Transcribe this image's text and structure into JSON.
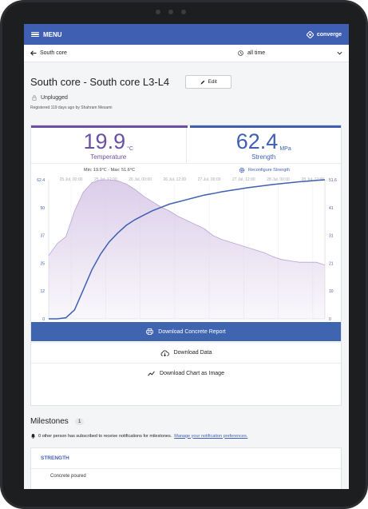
{
  "topbar": {
    "menu_label": "MENU",
    "brand": "converge",
    "menu_icon": "hamburger-icon",
    "brand_icon": "converge-logo-icon"
  },
  "breadcrumb": {
    "back_label": "South core",
    "range_label": "all time",
    "back_icon": "arrow-left-icon",
    "clock_icon": "clock-icon",
    "chevron_icon": "chevron-down-icon"
  },
  "sensor": {
    "title": "South core - South core L3-L4",
    "edit_label": "Edit",
    "status": "Unplugged",
    "registered": "Registered 119 days ago by Shahram Mesami"
  },
  "metrics": {
    "temperature": {
      "value": "19.9",
      "unit": "°C",
      "label": "Temperature"
    },
    "strength": {
      "value": "62.4",
      "unit": "MPa",
      "label": "Strength"
    },
    "minmax": "Min: 19.9°C - Max: 51.6°C",
    "reconfigure_label": "Reconfigure Strength"
  },
  "colors": {
    "brand": "#3f5fb3",
    "temperature": "#6b51a3",
    "temperature_fill": "#d9cbe8",
    "button": "#3f64b0"
  },
  "chart_data": {
    "type": "area",
    "x_ticks": [
      "25 Jul, 00:00",
      "25 Jul, 12:00",
      "26 Jul, 00:00",
      "26 Jul, 12:00",
      "27 Jul, 00:00",
      "27 Jul, 12:00",
      "28 Jul, 00:00",
      "28 Jul, 12:00"
    ],
    "left_axis_ticks": [
      "62.4",
      "50",
      "37",
      "25",
      "12",
      "0"
    ],
    "right_axis_ticks": [
      "51.6",
      "41",
      "31",
      "21",
      "10",
      "0"
    ],
    "left_ylim": [
      0,
      62.4
    ],
    "right_ylim": [
      0,
      51.6
    ],
    "grid": true,
    "series": [
      {
        "type": "area",
        "axis": "right",
        "x": [
          0,
          0.5,
          1,
          1.5,
          2,
          2.5,
          3,
          3.5,
          4,
          4.5,
          5,
          5.5,
          6,
          6.5,
          7,
          7.5,
          8,
          8.5,
          9,
          9.5,
          10,
          10.5,
          11,
          11.5,
          12,
          12.5,
          13,
          13.5,
          14,
          14.5,
          15,
          15.5,
          16
        ],
        "values": [
          23.5,
          28,
          30.5,
          40,
          47,
          50.5,
          51.5,
          51.6,
          51.2,
          50,
          48,
          45.5,
          43.5,
          41.5,
          40,
          38,
          36.5,
          35,
          33.5,
          31,
          29.5,
          28.5,
          27.5,
          26.5,
          25.5,
          24.5,
          23,
          22,
          21.5,
          21,
          21,
          21,
          20
        ]
      },
      {
        "type": "line",
        "axis": "left",
        "x": [
          0,
          0.5,
          1,
          1.5,
          2,
          2.5,
          3,
          3.5,
          4,
          4.5,
          5,
          5.5,
          6,
          6.5,
          7,
          7.5,
          8,
          8.5,
          9,
          9.5,
          10,
          10.5,
          11,
          11.5,
          12,
          12.5,
          13,
          13.5,
          14,
          14.5,
          15,
          15.5,
          16
        ],
        "values": [
          0,
          0,
          0.5,
          4,
          13,
          22,
          29,
          34.5,
          38.5,
          42,
          44.5,
          46.5,
          48.5,
          50,
          51.5,
          52.5,
          53.5,
          54.5,
          55.5,
          56.2,
          57,
          57.6,
          58.2,
          58.8,
          59.3,
          59.8,
          60.3,
          60.7,
          61.1,
          61.5,
          61.8,
          62.1,
          62.4
        ]
      }
    ]
  },
  "downloads": {
    "report_label": "Download Concrete Report",
    "data_label": "Download Data",
    "chart_label": "Download Chart as Image"
  },
  "milestones": {
    "title": "Milestones",
    "count": "1",
    "notify_text": "0 other person has subscribed to receive notifications for milestones.",
    "notify_link": "Manage your notification preferences.",
    "section_label": "STRENGTH",
    "item_label": "Concrete poured"
  }
}
